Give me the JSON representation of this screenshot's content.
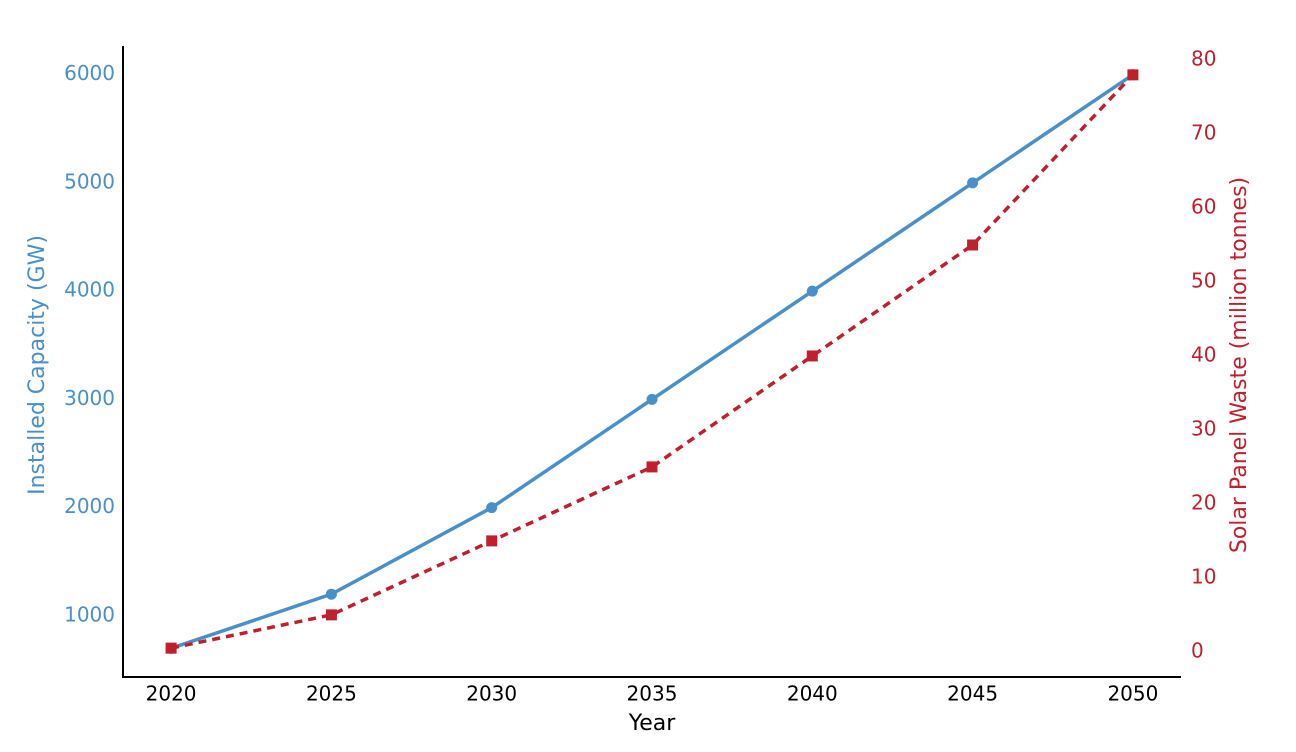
{
  "chart_data": {
    "type": "line",
    "x": [
      2020,
      2025,
      2030,
      2035,
      2040,
      2045,
      2050
    ],
    "xlim": [
      2018.5,
      2051.5
    ],
    "xticks": [
      2020,
      2025,
      2030,
      2035,
      2040,
      2045,
      2050
    ],
    "ylim": [
      435,
      6265
    ],
    "yticks": [
      1000,
      2000,
      3000,
      4000,
      5000,
      6000
    ],
    "y2lim": [
      -3.4,
      81.9
    ],
    "y2ticks": [
      0,
      10,
      20,
      30,
      40,
      50,
      60,
      70,
      80
    ],
    "xlabel": "Year",
    "ylabel": "Installed Capacity (GW)",
    "y2label": "Solar Panel Waste (million tonnes)",
    "series": [
      {
        "name": "Installed Capacity (GW)",
        "color": "#4a90c8",
        "marker": "circle",
        "linestyle": "solid",
        "values": [
          700,
          1200,
          2000,
          3000,
          4000,
          5000,
          6000
        ]
      },
      {
        "name": "Solar Panel Waste (million tonnes)",
        "color": "#c0202e",
        "marker": "square",
        "linestyle": "dashed",
        "axis": "y2",
        "values": [
          0.5,
          5,
          15,
          25,
          40,
          55,
          78
        ]
      }
    ]
  }
}
